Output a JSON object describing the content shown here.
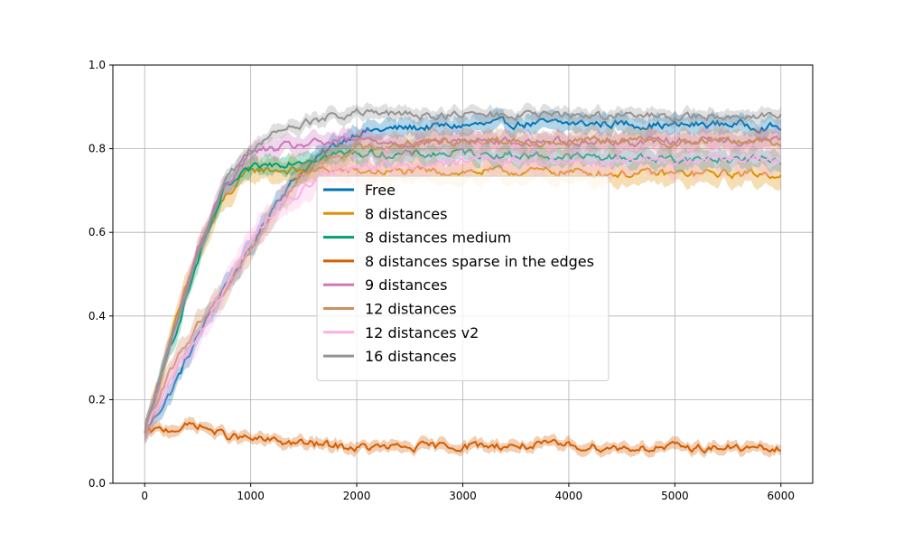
{
  "chart_data": {
    "type": "line",
    "title": "",
    "xlabel": "",
    "ylabel": "",
    "xlim": [
      -300,
      6300
    ],
    "ylim": [
      0.0,
      1.0
    ],
    "xticks": [
      0,
      1000,
      2000,
      3000,
      4000,
      5000,
      6000
    ],
    "yticks": [
      0.0,
      0.2,
      0.4,
      0.6,
      0.8,
      1.0
    ],
    "xtick_labels": [
      "0",
      "1000",
      "2000",
      "3000",
      "4000",
      "5000",
      "6000"
    ],
    "ytick_labels": [
      "0.0",
      "0.2",
      "0.4",
      "0.6",
      "0.8",
      "1.0"
    ],
    "grid": true,
    "legend_position": "center",
    "series": [
      {
        "name": "Free",
        "color": "#0173b2",
        "x": [
          0,
          250,
          500,
          750,
          1000,
          1250,
          1500,
          1750,
          2000,
          2500,
          3000,
          3500,
          4000,
          4500,
          5000,
          5500,
          6000
        ],
        "y": [
          0.12,
          0.22,
          0.35,
          0.47,
          0.56,
          0.68,
          0.75,
          0.8,
          0.84,
          0.85,
          0.855,
          0.86,
          0.86,
          0.86,
          0.855,
          0.86,
          0.85
        ],
        "band": 0.02
      },
      {
        "name": "8 distances",
        "color": "#de8f05",
        "x": [
          0,
          250,
          500,
          750,
          1000,
          1250,
          1500,
          1750,
          2000,
          2500,
          3000,
          3500,
          4000,
          4500,
          5000,
          5500,
          6000
        ],
        "y": [
          0.12,
          0.35,
          0.55,
          0.68,
          0.75,
          0.75,
          0.745,
          0.75,
          0.745,
          0.745,
          0.745,
          0.745,
          0.745,
          0.74,
          0.74,
          0.74,
          0.74
        ],
        "band": 0.025
      },
      {
        "name": "8 distances medium",
        "color": "#029e73",
        "x": [
          0,
          250,
          500,
          750,
          1000,
          1250,
          1500,
          1750,
          2000,
          2500,
          3000,
          3500,
          4000,
          4500,
          5000,
          5500,
          6000
        ],
        "y": [
          0.12,
          0.33,
          0.53,
          0.7,
          0.75,
          0.765,
          0.775,
          0.785,
          0.79,
          0.785,
          0.79,
          0.785,
          0.78,
          0.78,
          0.775,
          0.775,
          0.775
        ],
        "band": 0.02
      },
      {
        "name": "8 distances sparse in the edges",
        "color": "#d55e00",
        "x": [
          0,
          250,
          500,
          750,
          1000,
          1250,
          1500,
          1750,
          2000,
          2500,
          3000,
          3500,
          4000,
          4500,
          5000,
          5500,
          6000
        ],
        "y": [
          0.12,
          0.13,
          0.14,
          0.115,
          0.105,
          0.1,
          0.095,
          0.09,
          0.085,
          0.085,
          0.09,
          0.09,
          0.09,
          0.085,
          0.085,
          0.085,
          0.08
        ],
        "band": 0.012
      },
      {
        "name": "9 distances",
        "color": "#cc78bc",
        "x": [
          0,
          250,
          500,
          750,
          1000,
          1250,
          1500,
          1750,
          2000,
          2500,
          3000,
          3500,
          4000,
          4500,
          5000,
          5500,
          6000
        ],
        "y": [
          0.12,
          0.34,
          0.56,
          0.71,
          0.79,
          0.8,
          0.81,
          0.815,
          0.82,
          0.815,
          0.82,
          0.815,
          0.82,
          0.815,
          0.82,
          0.82,
          0.82
        ],
        "band": 0.02
      },
      {
        "name": "12 distances",
        "color": "#ca9161",
        "x": [
          0,
          250,
          500,
          750,
          1000,
          1250,
          1500,
          1750,
          2000,
          2500,
          3000,
          3500,
          4000,
          4500,
          5000,
          5500,
          6000
        ],
        "y": [
          0.12,
          0.27,
          0.38,
          0.46,
          0.56,
          0.66,
          0.74,
          0.78,
          0.8,
          0.815,
          0.82,
          0.82,
          0.815,
          0.82,
          0.815,
          0.82,
          0.815
        ],
        "band": 0.025
      },
      {
        "name": "12 distances v2",
        "color": "#fbafe4",
        "x": [
          0,
          250,
          500,
          750,
          1000,
          1250,
          1500,
          1750,
          2000,
          2500,
          3000,
          3500,
          4000,
          4500,
          5000,
          5500,
          6000
        ],
        "y": [
          0.12,
          0.25,
          0.35,
          0.46,
          0.58,
          0.66,
          0.7,
          0.74,
          0.76,
          0.76,
          0.77,
          0.77,
          0.77,
          0.77,
          0.77,
          0.775,
          0.77
        ],
        "band": 0.03
      },
      {
        "name": "16 distances",
        "color": "#949494",
        "x": [
          0,
          250,
          500,
          750,
          1000,
          1250,
          1500,
          1750,
          2000,
          2500,
          3000,
          3500,
          4000,
          4500,
          5000,
          5500,
          6000
        ],
        "y": [
          0.12,
          0.34,
          0.55,
          0.72,
          0.8,
          0.84,
          0.86,
          0.875,
          0.885,
          0.88,
          0.88,
          0.88,
          0.88,
          0.88,
          0.875,
          0.88,
          0.88
        ],
        "band": 0.015
      }
    ]
  }
}
